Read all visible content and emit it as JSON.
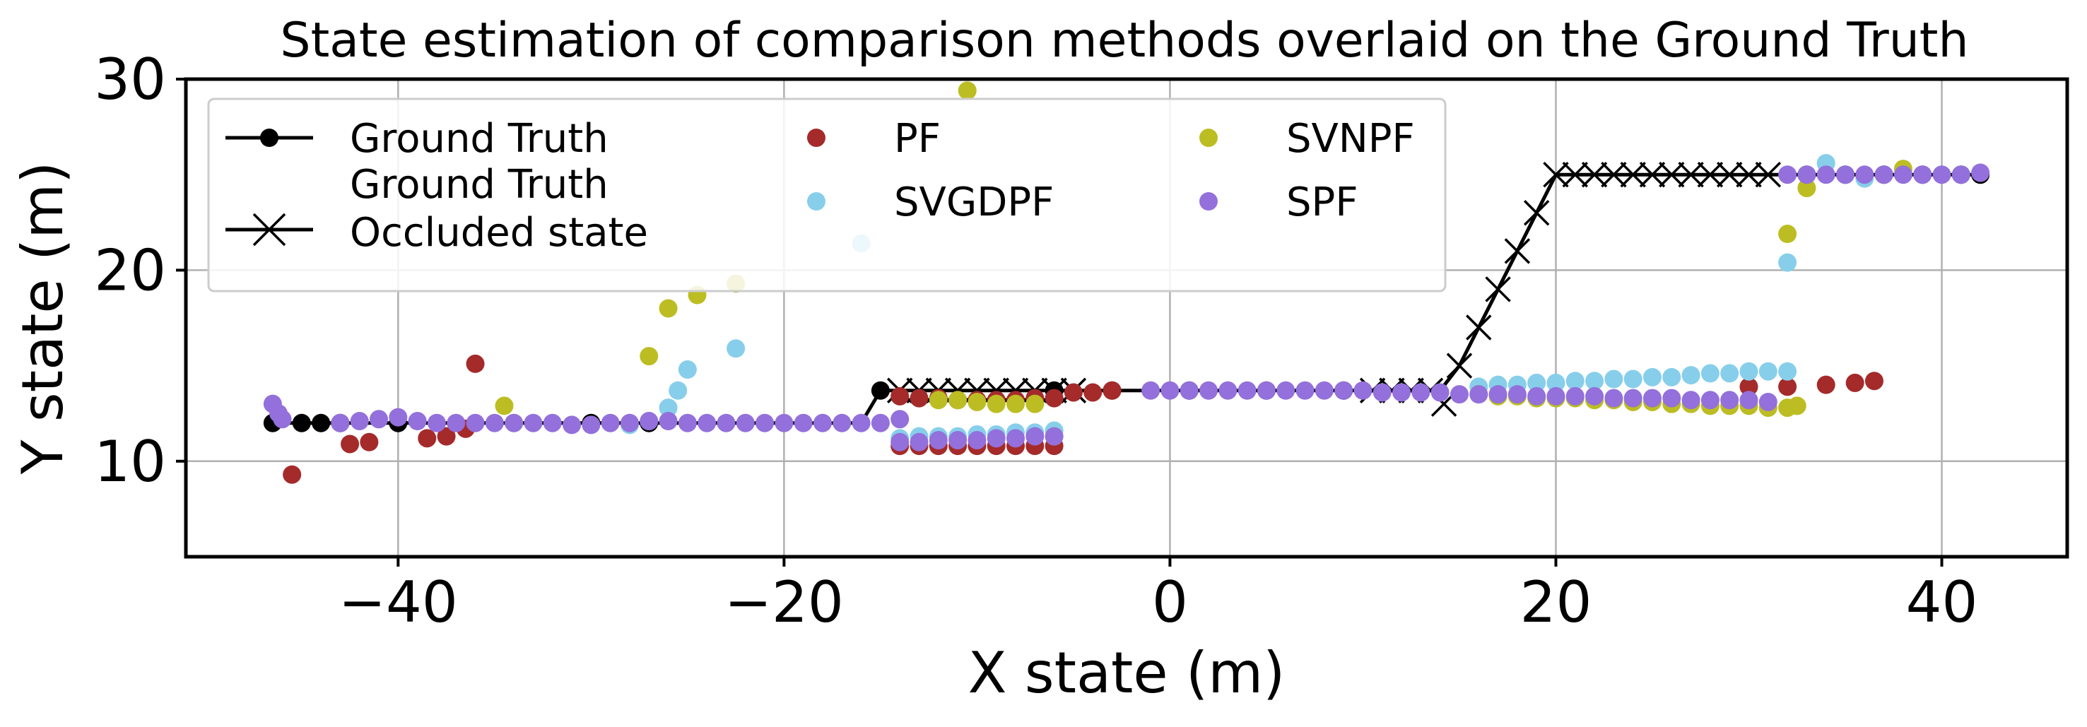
{
  "chart_data": {
    "type": "scatter",
    "title": "State estimation of comparison methods overlaid on the Ground Truth",
    "xlabel": "X state (m)",
    "ylabel": "Y state (m)",
    "xlim": [
      -51,
      46.5
    ],
    "ylim": [
      5,
      30
    ],
    "xticks": [
      -40,
      -20,
      0,
      20,
      40
    ],
    "xtick_labels": [
      "−40",
      "−20",
      "0",
      "20",
      "40"
    ],
    "yticks": [
      10,
      20,
      30
    ],
    "ytick_labels": [
      "10",
      "20",
      "30"
    ],
    "grid": true,
    "legend": {
      "position": "top-left",
      "columns": 3
    },
    "series": [
      {
        "name": "Ground Truth",
        "legend_label": [
          "Ground Truth"
        ],
        "kind": "line-dots",
        "color": "#000000",
        "segments": [
          [
            [
              -46.5,
              12.0
            ],
            [
              -45,
              12.0
            ],
            [
              -44,
              12.0
            ],
            [
              -43,
              12.0
            ],
            [
              -41,
              12.0
            ],
            [
              -39,
              12.0
            ],
            [
              -37,
              12.0
            ],
            [
              -35,
              12.0
            ],
            [
              -33,
              12.0
            ],
            [
              -31,
              12.0
            ],
            [
              -29,
              12.0
            ],
            [
              -27,
              12.0
            ],
            [
              -25,
              12.0
            ],
            [
              -23,
              12.0
            ],
            [
              -21,
              12.0
            ],
            [
              -19,
              12.0
            ],
            [
              -17,
              12.0
            ],
            [
              -16,
              12.0
            ]
          ],
          [
            [
              -16,
              12.0
            ],
            [
              -15,
              13.7
            ]
          ],
          [
            [
              -6,
              13.7
            ],
            [
              -4,
              13.7
            ],
            [
              -2,
              13.7
            ],
            [
              0,
              13.7
            ],
            [
              2,
              13.7
            ],
            [
              4,
              13.7
            ],
            [
              6,
              13.7
            ],
            [
              8,
              13.7
            ],
            [
              10,
              13.7
            ]
          ],
          [
            [
              32,
              25.0
            ],
            [
              34,
              25.0
            ],
            [
              36,
              25.0
            ],
            [
              38,
              25.0
            ],
            [
              40,
              25.0
            ],
            [
              42,
              25.0
            ]
          ]
        ],
        "dots": [
          [
            -46.5,
            12.0
          ],
          [
            -45,
            12.0
          ],
          [
            -44,
            12.0
          ],
          [
            -43,
            12.0
          ],
          [
            -40,
            12.0
          ],
          [
            -30,
            12.0
          ],
          [
            -27,
            12.0
          ],
          [
            -15,
            13.7
          ],
          [
            -6,
            13.7
          ],
          [
            -3,
            13.7
          ],
          [
            1,
            13.7
          ],
          [
            5,
            13.7
          ],
          [
            9,
            13.7
          ],
          [
            33,
            25.0
          ],
          [
            35,
            25.0
          ],
          [
            37,
            25.0
          ],
          [
            39,
            25.0
          ],
          [
            41,
            25.0
          ],
          [
            42,
            25.0
          ]
        ]
      },
      {
        "name": "Ground Truth Occluded state",
        "legend_label": [
          "Ground Truth",
          "Occluded state"
        ],
        "kind": "line-x",
        "color": "#000000",
        "line": [
          [
            -15,
            13.7
          ],
          [
            -5,
            13.7
          ]
        ],
        "line2": [
          [
            10,
            13.7
          ],
          [
            14,
            13.7
          ],
          [
            15,
            15.0
          ],
          [
            16,
            17.0
          ],
          [
            17,
            19.0
          ],
          [
            18,
            21.0
          ],
          [
            19,
            23.0
          ],
          [
            20,
            25.0
          ],
          [
            32,
            25.0
          ]
        ],
        "markers": [
          [
            -14,
            13.7
          ],
          [
            -13,
            13.7
          ],
          [
            -12,
            13.7
          ],
          [
            -11,
            13.7
          ],
          [
            -10,
            13.7
          ],
          [
            -9,
            13.7
          ],
          [
            -8,
            13.7
          ],
          [
            -7,
            13.7
          ],
          [
            -6,
            13.7
          ],
          [
            -5,
            13.7
          ],
          [
            10.5,
            13.7
          ],
          [
            11.5,
            13.7
          ],
          [
            12.5,
            13.7
          ],
          [
            13.5,
            13.7
          ],
          [
            14.2,
            13.0
          ],
          [
            15,
            15.0
          ],
          [
            16,
            17.0
          ],
          [
            17,
            19.0
          ],
          [
            18,
            21.0
          ],
          [
            19,
            23.0
          ],
          [
            20,
            25.0
          ],
          [
            21,
            25.0
          ],
          [
            22,
            25.0
          ],
          [
            23,
            25.0
          ],
          [
            24,
            25.0
          ],
          [
            25,
            25.0
          ],
          [
            26,
            25.0
          ],
          [
            27,
            25.0
          ],
          [
            28,
            25.0
          ],
          [
            29,
            25.0
          ],
          [
            30,
            25.0
          ],
          [
            31,
            25.0
          ]
        ]
      },
      {
        "name": "PF",
        "legend_label": [
          "PF"
        ],
        "kind": "dots",
        "color": "#a52a2a",
        "points": [
          [
            -45.5,
            9.3
          ],
          [
            -42.5,
            10.9
          ],
          [
            -41.5,
            11.0
          ],
          [
            -38.5,
            11.2
          ],
          [
            -37.5,
            11.3
          ],
          [
            -36.5,
            11.7
          ],
          [
            -36,
            15.1
          ],
          [
            -14,
            10.8
          ],
          [
            -13,
            10.8
          ],
          [
            -12,
            10.8
          ],
          [
            -11,
            10.8
          ],
          [
            -10,
            10.8
          ],
          [
            -9,
            10.8
          ],
          [
            -8,
            10.8
          ],
          [
            -7,
            10.8
          ],
          [
            -6,
            10.8
          ],
          [
            -14,
            13.4
          ],
          [
            -13,
            13.3
          ],
          [
            -12,
            13.3
          ],
          [
            -11,
            13.2
          ],
          [
            -10,
            13.2
          ],
          [
            -9,
            13.2
          ],
          [
            -8,
            13.2
          ],
          [
            -7,
            13.3
          ],
          [
            -6,
            13.3
          ],
          [
            -5,
            13.6
          ],
          [
            -4,
            13.6
          ],
          [
            -3,
            13.7
          ],
          [
            30,
            13.9
          ],
          [
            32,
            13.9
          ],
          [
            34,
            14.0
          ],
          [
            35.5,
            14.1
          ],
          [
            36.5,
            14.2
          ]
        ]
      },
      {
        "name": "SVGDPF",
        "legend_label": [
          "SVGDPF"
        ],
        "kind": "dots",
        "color": "#87ceeb",
        "points": [
          [
            -28,
            11.9
          ],
          [
            -27,
            12.1
          ],
          [
            -26,
            12.8
          ],
          [
            -25.5,
            13.7
          ],
          [
            -25,
            14.8
          ],
          [
            -22.5,
            15.9
          ],
          [
            -16,
            21.4
          ],
          [
            -14,
            11.2
          ],
          [
            -13,
            11.3
          ],
          [
            -12,
            11.3
          ],
          [
            -11,
            11.3
          ],
          [
            -10,
            11.4
          ],
          [
            -9,
            11.4
          ],
          [
            -8,
            11.5
          ],
          [
            -7,
            11.5
          ],
          [
            -6,
            11.6
          ],
          [
            16,
            13.9
          ],
          [
            17,
            14.0
          ],
          [
            18,
            14.0
          ],
          [
            19,
            14.1
          ],
          [
            20,
            14.1
          ],
          [
            21,
            14.2
          ],
          [
            22,
            14.2
          ],
          [
            23,
            14.3
          ],
          [
            24,
            14.3
          ],
          [
            25,
            14.4
          ],
          [
            26,
            14.4
          ],
          [
            27,
            14.5
          ],
          [
            28,
            14.6
          ],
          [
            29,
            14.6
          ],
          [
            30,
            14.7
          ],
          [
            31,
            14.7
          ],
          [
            32,
            14.7
          ],
          [
            32,
            20.4
          ],
          [
            34,
            25.6
          ],
          [
            36,
            24.8
          ]
        ]
      },
      {
        "name": "SVNPF",
        "legend_label": [
          "SVNPF"
        ],
        "kind": "dots",
        "color": "#bcbd22",
        "points": [
          [
            -34.5,
            12.9
          ],
          [
            -34,
            12.0
          ],
          [
            -27,
            15.5
          ],
          [
            -26,
            18.0
          ],
          [
            -24.5,
            18.7
          ],
          [
            -22.5,
            19.3
          ],
          [
            -10.5,
            29.4
          ],
          [
            -12,
            13.2
          ],
          [
            -11,
            13.2
          ],
          [
            -10,
            13.1
          ],
          [
            -9,
            13.0
          ],
          [
            -8,
            13.0
          ],
          [
            -7,
            13.0
          ],
          [
            -6,
            11.3
          ],
          [
            16,
            13.5
          ],
          [
            17,
            13.4
          ],
          [
            18,
            13.4
          ],
          [
            19,
            13.3
          ],
          [
            20,
            13.3
          ],
          [
            21,
            13.3
          ],
          [
            22,
            13.2
          ],
          [
            23,
            13.2
          ],
          [
            24,
            13.1
          ],
          [
            25,
            13.1
          ],
          [
            26,
            13.0
          ],
          [
            27,
            13.0
          ],
          [
            28,
            12.9
          ],
          [
            29,
            12.9
          ],
          [
            30,
            12.9
          ],
          [
            31,
            12.8
          ],
          [
            32,
            12.8
          ],
          [
            32.5,
            12.9
          ],
          [
            32,
            21.9
          ],
          [
            33,
            24.3
          ],
          [
            38,
            25.3
          ]
        ]
      },
      {
        "name": "SPF",
        "legend_label": [
          "SPF"
        ],
        "kind": "dots",
        "color": "#9370db",
        "points": [
          [
            -46.5,
            13.0
          ],
          [
            -46.2,
            12.5
          ],
          [
            -46,
            12.2
          ],
          [
            -43,
            12.0
          ],
          [
            -42,
            12.1
          ],
          [
            -41,
            12.2
          ],
          [
            -40,
            12.3
          ],
          [
            -39,
            12.1
          ],
          [
            -38,
            12.0
          ],
          [
            -37,
            12.0
          ],
          [
            -36,
            12.0
          ],
          [
            -35,
            12.0
          ],
          [
            -34,
            12.0
          ],
          [
            -33,
            12.0
          ],
          [
            -32,
            12.0
          ],
          [
            -31,
            11.9
          ],
          [
            -30,
            11.9
          ],
          [
            -29,
            12.0
          ],
          [
            -28,
            12.0
          ],
          [
            -27,
            12.1
          ],
          [
            -26,
            12.1
          ],
          [
            -25,
            12.0
          ],
          [
            -24,
            12.0
          ],
          [
            -23,
            12.0
          ],
          [
            -22,
            12.0
          ],
          [
            -21,
            12.0
          ],
          [
            -20,
            12.0
          ],
          [
            -19,
            12.0
          ],
          [
            -18,
            12.0
          ],
          [
            -17,
            12.0
          ],
          [
            -16,
            12.0
          ],
          [
            -15,
            12.0
          ],
          [
            -14,
            12.2
          ],
          [
            -14,
            11.0
          ],
          [
            -13,
            11.0
          ],
          [
            -12,
            11.1
          ],
          [
            -11,
            11.1
          ],
          [
            -10,
            11.1
          ],
          [
            -9,
            11.2
          ],
          [
            -8,
            11.2
          ],
          [
            -7,
            11.3
          ],
          [
            -6,
            11.3
          ],
          [
            -1,
            13.7
          ],
          [
            0,
            13.7
          ],
          [
            1,
            13.7
          ],
          [
            2,
            13.7
          ],
          [
            3,
            13.7
          ],
          [
            4,
            13.7
          ],
          [
            5,
            13.7
          ],
          [
            6,
            13.7
          ],
          [
            7,
            13.7
          ],
          [
            8,
            13.7
          ],
          [
            9,
            13.7
          ],
          [
            10,
            13.7
          ],
          [
            11,
            13.6
          ],
          [
            12,
            13.6
          ],
          [
            13,
            13.6
          ],
          [
            14,
            13.6
          ],
          [
            15,
            13.5
          ],
          [
            16,
            13.5
          ],
          [
            17,
            13.5
          ],
          [
            18,
            13.5
          ],
          [
            19,
            13.4
          ],
          [
            20,
            13.4
          ],
          [
            21,
            13.4
          ],
          [
            22,
            13.4
          ],
          [
            23,
            13.3
          ],
          [
            24,
            13.3
          ],
          [
            25,
            13.3
          ],
          [
            26,
            13.3
          ],
          [
            27,
            13.2
          ],
          [
            28,
            13.2
          ],
          [
            29,
            13.2
          ],
          [
            30,
            13.2
          ],
          [
            31,
            13.1
          ],
          [
            32,
            25.0
          ],
          [
            33,
            25.0
          ],
          [
            34,
            25.0
          ],
          [
            35,
            25.0
          ],
          [
            36,
            25.0
          ],
          [
            37,
            25.0
          ],
          [
            38,
            25.0
          ],
          [
            39,
            25.0
          ],
          [
            40,
            25.0
          ],
          [
            41,
            25.0
          ],
          [
            42,
            25.1
          ]
        ]
      }
    ]
  }
}
